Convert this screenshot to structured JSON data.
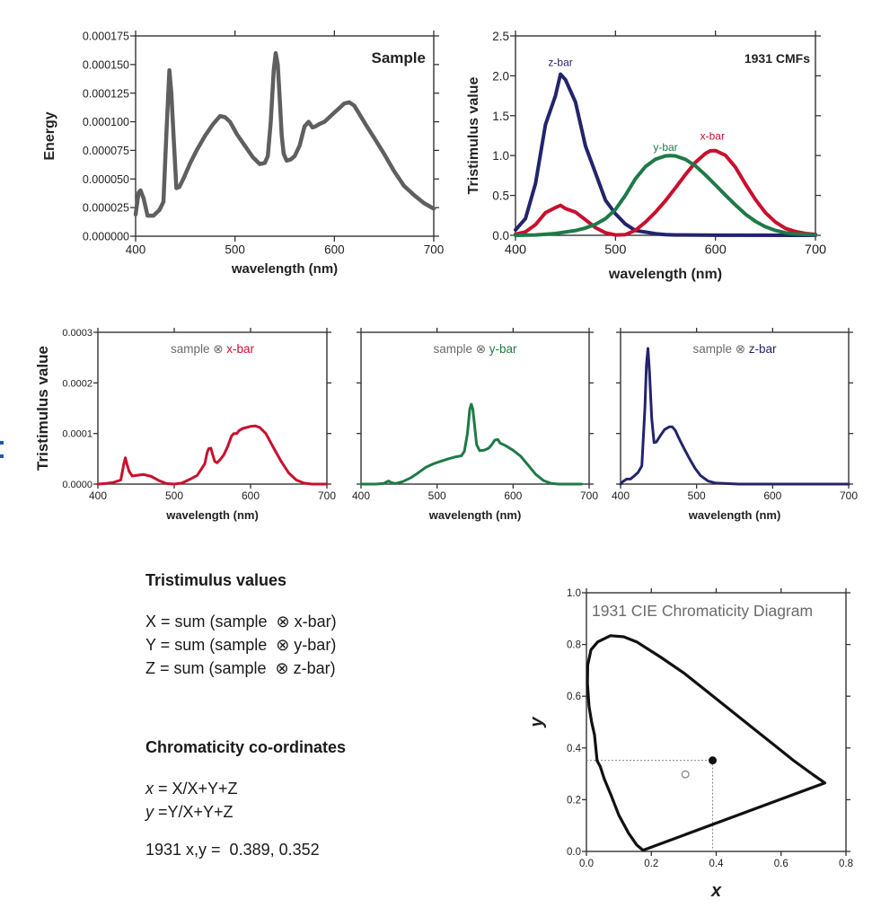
{
  "colors": {
    "sample": "#5f5f5f",
    "xbar": "#c8102e",
    "ybar": "#1e7a46",
    "zbar": "#23246b",
    "axis": "#333333",
    "label_gray": "#6b6b6b",
    "locus": "#111111"
  },
  "chart_data": [
    {
      "id": "sample",
      "type": "line",
      "title": "Sample",
      "xlabel": "wavelength (nm)",
      "ylabel": "Energy",
      "xlim": [
        400,
        700
      ],
      "ylim": [
        0,
        0.000175
      ],
      "xticks": [
        400,
        500,
        600,
        700
      ],
      "yticks": [
        0,
        2.5e-05,
        5e-05,
        7.5e-05,
        0.0001,
        0.000125,
        0.00015,
        0.000175
      ],
      "ytick_labels": [
        "0.000000",
        "0.000025",
        "0.000050",
        "0.000075",
        "0.000100",
        "0.000125",
        "0.000150",
        "0.000175"
      ],
      "series": [
        {
          "name": "sample",
          "color_key": "sample",
          "x": [
            400,
            403,
            405,
            408,
            412,
            418,
            424,
            428,
            431,
            434,
            436,
            438,
            441,
            444,
            448,
            455,
            462,
            470,
            478,
            485,
            490,
            495,
            502,
            510,
            518,
            525,
            530,
            533,
            536,
            539,
            541,
            543,
            545,
            547,
            549,
            552,
            556,
            560,
            565,
            570,
            574,
            578,
            581,
            585,
            590,
            600,
            605,
            610,
            615,
            620,
            625,
            632,
            640,
            650,
            660,
            670,
            680,
            690,
            700
          ],
          "y": [
            1.9e-05,
            3.8e-05,
            4e-05,
            3.3e-05,
            1.8e-05,
            1.8e-05,
            2.3e-05,
            3e-05,
            9e-05,
            0.000145,
            0.000125,
            9e-05,
            4.2e-05,
            4.3e-05,
            5e-05,
            6.4e-05,
            7.6e-05,
            8.8e-05,
            9.8e-05,
            0.000105,
            0.000104,
            0.0001,
            8.9e-05,
            7.9e-05,
            6.9e-05,
            6.3e-05,
            6.4e-05,
            7e-05,
            0.0001,
            0.000145,
            0.00016,
            0.00015,
            0.00012,
            8.8e-05,
            7.2e-05,
            6.6e-05,
            6.7e-05,
            7e-05,
            7.9e-05,
            9.6e-05,
            0.0001,
            9.5e-05,
            9.6e-05,
            9.8e-05,
            0.0001,
            0.000108,
            0.000112,
            0.000116,
            0.000117,
            0.000114,
            0.000107,
            9.7e-05,
            8.6e-05,
            7.2e-05,
            5.7e-05,
            4.4e-05,
            3.6e-05,
            2.9e-05,
            2.4e-05
          ]
        }
      ]
    },
    {
      "id": "cmfs",
      "type": "line",
      "title": "1931  CMFs",
      "xlabel": "wavelength  (nm)",
      "ylabel": "Tristimulus value",
      "xlim": [
        400,
        700
      ],
      "ylim": [
        0,
        2.5
      ],
      "xticks": [
        400,
        500,
        600,
        700
      ],
      "yticks": [
        0,
        0.5,
        1.0,
        1.5,
        2.0,
        2.5
      ],
      "ytick_labels": [
        "0.0",
        "0.5",
        "1.0",
        "1.5",
        "2.0",
        "2.5"
      ],
      "series": [
        {
          "name": "z-bar",
          "color_key": "zbar",
          "x": [
            400,
            410,
            420,
            430,
            440,
            445,
            450,
            460,
            470,
            480,
            490,
            500,
            510,
            520,
            530,
            540,
            550,
            560,
            600,
            700
          ],
          "y": [
            0.068,
            0.21,
            0.65,
            1.39,
            1.75,
            2.02,
            1.95,
            1.67,
            1.12,
            0.78,
            0.44,
            0.27,
            0.14,
            0.06,
            0.04,
            0.02,
            0.009,
            0.004,
            0.001,
            0.0
          ]
        },
        {
          "name": "x-bar",
          "color_key": "xbar",
          "x": [
            400,
            410,
            420,
            430,
            440,
            445,
            450,
            460,
            470,
            480,
            490,
            500,
            510,
            520,
            530,
            540,
            550,
            560,
            570,
            580,
            590,
            595,
            600,
            610,
            620,
            630,
            640,
            650,
            660,
            670,
            680,
            690,
            700
          ],
          "y": [
            0.014,
            0.043,
            0.134,
            0.284,
            0.348,
            0.375,
            0.336,
            0.291,
            0.195,
            0.096,
            0.032,
            0.005,
            0.009,
            0.063,
            0.165,
            0.29,
            0.433,
            0.595,
            0.762,
            0.916,
            1.026,
            1.06,
            1.062,
            1.003,
            0.854,
            0.642,
            0.448,
            0.284,
            0.165,
            0.087,
            0.047,
            0.023,
            0.011
          ]
        },
        {
          "name": "y-bar",
          "color_key": "ybar",
          "x": [
            400,
            420,
            440,
            460,
            470,
            480,
            490,
            500,
            510,
            520,
            530,
            540,
            550,
            555,
            560,
            570,
            580,
            590,
            600,
            610,
            620,
            630,
            640,
            650,
            660,
            670,
            680,
            700
          ],
          "y": [
            0.0,
            0.004,
            0.023,
            0.06,
            0.091,
            0.139,
            0.208,
            0.323,
            0.503,
            0.71,
            0.862,
            0.954,
            0.995,
            1.0,
            0.995,
            0.952,
            0.87,
            0.757,
            0.631,
            0.503,
            0.381,
            0.265,
            0.175,
            0.107,
            0.061,
            0.032,
            0.017,
            0.004
          ]
        }
      ],
      "annotations": [
        {
          "text": "z-bar",
          "color_key": "zbar",
          "x": 445,
          "y": 2.12
        },
        {
          "text": "y-bar",
          "color_key": "ybar",
          "x": 550,
          "y": 1.06
        },
        {
          "text": "x-bar",
          "color_key": "xbar",
          "x": 597,
          "y": 1.2
        }
      ]
    },
    {
      "id": "product-x",
      "type": "line",
      "title_parts": [
        "sample ",
        "⊗",
        " x-bar"
      ],
      "xlabel": "wavelength (nm)",
      "ylabel": "Tristimulus value",
      "xlim": [
        400,
        700
      ],
      "ylim": [
        0,
        0.0003
      ],
      "xticks": [
        400,
        500,
        600,
        700
      ],
      "yticks": [
        0,
        0.0001,
        0.0002,
        0.0003
      ],
      "ytick_labels": [
        "0.0000",
        "0.0001",
        "0.0002",
        "0.0003"
      ],
      "series": [
        {
          "name": "sample ⊗ x-bar",
          "color_key": "xbar",
          "x": [
            400,
            410,
            420,
            430,
            434,
            436,
            438,
            441,
            445,
            450,
            460,
            470,
            480,
            490,
            500,
            510,
            520,
            530,
            540,
            543,
            545,
            548,
            550,
            553,
            556,
            560,
            565,
            570,
            575,
            578,
            582,
            585,
            590,
            600,
            606,
            612,
            620,
            630,
            640,
            650,
            660,
            670,
            680,
            700
          ],
          "y": [
            0.0,
            1e-06,
            3e-06,
            8e-06,
            4e-05,
            5.2e-05,
            4e-05,
            2.5e-05,
            1.6e-05,
            1.7e-05,
            1.9e-05,
            1.5e-05,
            7e-06,
            1e-06,
            0.0,
            2e-06,
            9e-06,
            1.7e-05,
            4e-05,
            6.2e-05,
            7e-05,
            7.1e-05,
            6e-05,
            4.5e-05,
            4.2e-05,
            4.8e-05,
            5.8e-05,
            7.4e-05,
            9.5e-05,
            0.0001,
            0.0001,
            0.000106,
            0.00011,
            0.000114,
            0.000115,
            0.000112,
            0.0001,
            7.2e-05,
            4.5e-05,
            2.2e-05,
            8e-06,
            2e-06,
            0.0,
            0.0
          ]
        }
      ]
    },
    {
      "id": "product-y",
      "type": "line",
      "title_parts": [
        "sample ",
        "⊗",
        " y-bar"
      ],
      "xlabel": "wavelength (nm)",
      "ylabel": "",
      "xlim": [
        400,
        700
      ],
      "ylim": [
        0,
        0.0003
      ],
      "xticks": [
        400,
        500,
        600,
        700
      ],
      "yticks": [
        0,
        0.0001,
        0.0002,
        0.0003
      ],
      "series": [
        {
          "name": "sample ⊗ y-bar",
          "color_key": "ybar",
          "x": [
            400,
            420,
            430,
            436,
            440,
            445,
            455,
            465,
            475,
            485,
            495,
            505,
            515,
            525,
            532,
            536,
            540,
            543,
            545,
            547,
            549,
            552,
            556,
            562,
            568,
            572,
            576,
            580,
            583,
            590,
            600,
            610,
            620,
            630,
            640,
            650,
            660,
            670,
            690
          ],
          "y": [
            0.0,
            0.0,
            1.5e-06,
            6e-06,
            3e-06,
            1e-06,
            5e-06,
            1.2e-05,
            2.2e-05,
            3.3e-05,
            4e-05,
            4.5e-05,
            5e-05,
            5.4e-05,
            5.6e-05,
            6.5e-05,
            0.0001,
            0.000148,
            0.000158,
            0.000148,
            0.00012,
            7.8e-05,
            6.6e-05,
            6.7e-05,
            7.1e-05,
            7.8e-05,
            8.7e-05,
            8.8e-05,
            8.1e-05,
            7.6e-05,
            6.7e-05,
            5.5e-05,
            3.7e-05,
            1.9e-05,
            7e-06,
            1.5e-06,
            0.0,
            0.0,
            0.0
          ]
        }
      ]
    },
    {
      "id": "product-z",
      "type": "line",
      "title_parts": [
        "sample ",
        "⊗",
        " z-bar"
      ],
      "xlabel": "wavelength (nm)",
      "ylabel": "",
      "xlim": [
        400,
        700
      ],
      "ylim": [
        0,
        0.0003
      ],
      "xticks": [
        400,
        500,
        600,
        700
      ],
      "yticks": [
        0,
        0.0001,
        0.0002,
        0.0003
      ],
      "series": [
        {
          "name": "sample ⊗ z-bar",
          "color_key": "zbar",
          "x": [
            400,
            403,
            408,
            413,
            418,
            423,
            428,
            432,
            434,
            436,
            438,
            441,
            444,
            447,
            452,
            458,
            464,
            468,
            472,
            476,
            482,
            490,
            498,
            505,
            515,
            525,
            540,
            555,
            700
          ],
          "y": [
            0.0,
            5e-06,
            1e-05,
            1e-05,
            1.6e-05,
            2.3e-05,
            3.6e-05,
            0.00015,
            0.000235,
            0.000268,
            0.000222,
            0.00013,
            8.2e-05,
            8.3e-05,
            9.5e-05,
            0.000108,
            0.000113,
            0.000113,
            0.000106,
            9.3e-05,
            7.5e-05,
            5.2e-05,
            3.1e-05,
            1.7e-05,
            6e-06,
            2e-06,
            1e-06,
            0.0,
            0.0
          ]
        }
      ]
    },
    {
      "id": "chromaticity",
      "type": "scatter",
      "title": "1931  CIE  Chromaticity  Diagram",
      "xlabel": "x",
      "ylabel": "y",
      "xlim": [
        0,
        0.8
      ],
      "ylim": [
        0,
        1.0
      ],
      "xticks": [
        0,
        0.2,
        0.4,
        0.6,
        0.8
      ],
      "xtick_labels": [
        "0.0",
        "0.2",
        "0.4",
        "0.6",
        "0.8"
      ],
      "yticks": [
        0,
        0.2,
        0.4,
        0.6,
        0.8,
        1.0
      ],
      "ytick_labels": [
        "0.0",
        "0.2",
        "0.4",
        "0.6",
        "0.8",
        "1.0"
      ],
      "spectral_locus": {
        "x": [
          0.175,
          0.17,
          0.155,
          0.13,
          0.1,
          0.075,
          0.055,
          0.042,
          0.033,
          0.025,
          0.016,
          0.008,
          0.003,
          0.004,
          0.014,
          0.035,
          0.074,
          0.115,
          0.155,
          0.23,
          0.3,
          0.37,
          0.44,
          0.51,
          0.58,
          0.64,
          0.7,
          0.735
        ],
        "y": [
          0.005,
          0.009,
          0.025,
          0.07,
          0.14,
          0.22,
          0.28,
          0.33,
          0.35,
          0.45,
          0.5,
          0.56,
          0.65,
          0.72,
          0.78,
          0.81,
          0.834,
          0.83,
          0.81,
          0.75,
          0.69,
          0.62,
          0.55,
          0.48,
          0.41,
          0.35,
          0.295,
          0.265
        ]
      },
      "points": [
        {
          "name": "sample",
          "x": 0.389,
          "y": 0.352,
          "style": "filled"
        },
        {
          "name": "white-point",
          "x": 0.305,
          "y": 0.298,
          "style": "open"
        }
      ],
      "guides": {
        "x": 0.389,
        "y": 0.352
      }
    }
  ],
  "text": {
    "tristimulus_heading": "Tristimulus values",
    "eq_x": "X = sum (sample  ⊗ x-bar)",
    "eq_y": "Y = sum (sample  ⊗ y-bar)",
    "eq_z": "Z = sum (sample  ⊗ z-bar)",
    "chromaticity_heading": "Chromaticity co-ordinates",
    "eq_cx_var": "x",
    "eq_cx_rest": " = X/X+Y+Z",
    "eq_cy_var": "y",
    "eq_cy_rest": " =Y/X+Y+Z",
    "result": "1931 x,y =  0.389, 0.352"
  }
}
